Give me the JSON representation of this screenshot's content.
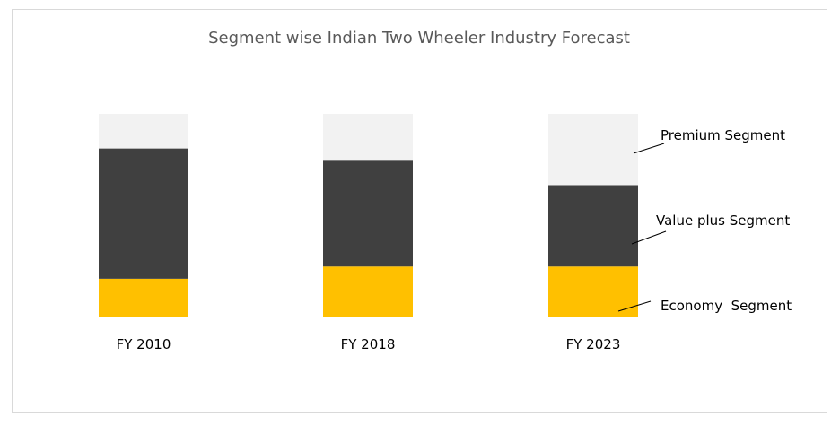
{
  "chart_data": {
    "type": "bar",
    "stacked": true,
    "title": "Segment wise Indian Two Wheeler Industry Forecast",
    "categories": [
      "FY 2010",
      "FY 2018",
      "FY 2023"
    ],
    "series": [
      {
        "name": "Economy  Segment",
        "values": [
          19,
          25,
          25
        ],
        "color": "#FFC000"
      },
      {
        "name": "Value plus Segment",
        "values": [
          64,
          52,
          40
        ],
        "color": "#404040"
      },
      {
        "name": "Premium Segment",
        "values": [
          17,
          23,
          35
        ],
        "color": "#F2F2F2"
      }
    ],
    "ylim": [
      0,
      100
    ],
    "grid": false,
    "legend": "right-annotations"
  }
}
